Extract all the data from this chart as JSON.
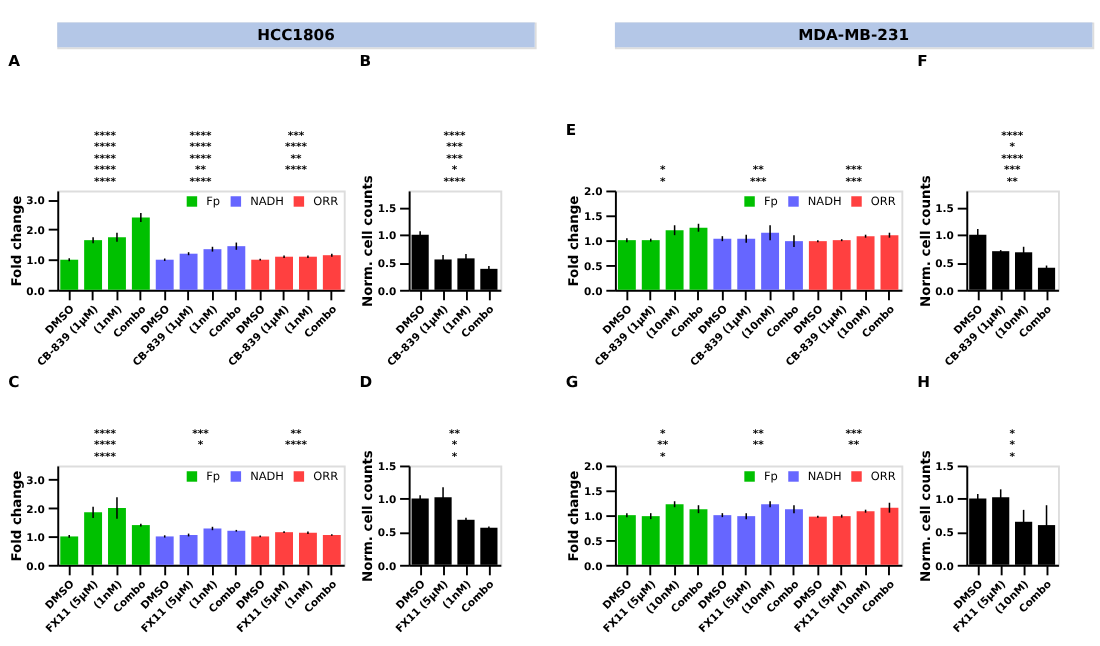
{
  "chart_data": [
    {
      "type": "other",
      "title": "HCC1806",
      "color": "#b4c7e7"
    },
    {
      "type": "bar",
      "title": "A",
      "ylabel": "Fold change",
      "categories": [
        "DMSO",
        "CB-839 (1μM)",
        "(1nM)",
        "Combo",
        "DMSO",
        "CB-839 (1μM)",
        "(1nM)",
        "Combo",
        "DMSO",
        "CB-839 (1μM)",
        "(1nM)",
        "Combo"
      ],
      "series": [
        {
          "name": "Fp",
          "color": "#00c000",
          "values": [
            1.0,
            1.65,
            1.75,
            2.4,
            null,
            null,
            null,
            null,
            null,
            null,
            null,
            null
          ],
          "errors": [
            0.05,
            0.1,
            0.15,
            0.15,
            null,
            null,
            null,
            null,
            null,
            null,
            null,
            null
          ]
        },
        {
          "name": "NADH",
          "color": "#6666ff",
          "values": [
            null,
            null,
            null,
            null,
            1.0,
            1.2,
            1.35,
            1.45,
            null,
            null,
            null,
            null
          ],
          "errors": [
            null,
            null,
            null,
            null,
            0.04,
            0.05,
            0.08,
            0.12,
            null,
            null,
            null,
            null
          ]
        },
        {
          "name": "ORR",
          "color": "#ff4040",
          "values": [
            null,
            null,
            null,
            null,
            null,
            null,
            null,
            null,
            1.0,
            1.1,
            1.1,
            1.15
          ],
          "errors": [
            null,
            null,
            null,
            null,
            null,
            null,
            null,
            null,
            0.03,
            0.04,
            0.04,
            0.05
          ]
        }
      ],
      "ylim": [
        0,
        3.3
      ],
      "yticks": [
        {
          "value": 0,
          "label": "0.0"
        },
        {
          "value": 1,
          "label": "1.0"
        },
        {
          "value": 2,
          "label": "2.0"
        },
        {
          "value": 3,
          "label": "3.0"
        }
      ],
      "legend": "top right",
      "grid": false,
      "annotations": [
        "****",
        "****",
        "***",
        "****",
        "****",
        "****",
        "****",
        "****",
        "**",
        "****",
        "**",
        "****",
        "****",
        "****"
      ]
    },
    {
      "type": "bar",
      "title": "B",
      "ylabel": "Norm. cell counts",
      "categories": [
        "DMSO",
        "CB-839 (1μM)",
        "(1nM)",
        "Combo"
      ],
      "series": [
        {
          "color": "#000000",
          "values": [
            1.0,
            0.55,
            0.57,
            0.38
          ],
          "errors": [
            0.06,
            0.08,
            0.08,
            0.05
          ]
        }
      ],
      "ylim": [
        0,
        1.8
      ],
      "yticks": [
        {
          "value": 0,
          "label": "0.0"
        },
        {
          "value": 0.5,
          "label": "0.5"
        },
        {
          "value": 1,
          "label": "1.0"
        },
        {
          "value": 1.5,
          "label": "1.5"
        }
      ],
      "grid": false,
      "annotations": [
        "****",
        "***",
        "***",
        "*",
        "****"
      ]
    },
    {
      "type": "bar",
      "title": "C",
      "ylabel": "Fold change",
      "categories": [
        "DMSO",
        "FX11 (5μM)",
        "(1nM)",
        "Combo",
        "DMSO",
        "FX11 (5μM)",
        "(1nM)",
        "Combo",
        "DMSO",
        "FX11 (5μM)",
        "(1nM)",
        "Combo"
      ],
      "series": [
        {
          "name": "Fp",
          "color": "#00c000",
          "values": [
            1.0,
            1.85,
            2.0,
            1.4,
            null,
            null,
            null,
            null,
            null,
            null,
            null,
            null
          ],
          "errors": [
            0.05,
            0.2,
            0.38,
            0.05,
            null,
            null,
            null,
            null,
            null,
            null,
            null,
            null
          ]
        },
        {
          "name": "NADH",
          "color": "#6666ff",
          "values": [
            null,
            null,
            null,
            null,
            1.0,
            1.05,
            1.28,
            1.2,
            null,
            null,
            null,
            null
          ],
          "errors": [
            null,
            null,
            null,
            null,
            0.04,
            0.05,
            0.06,
            0.03,
            null,
            null,
            null,
            null
          ]
        },
        {
          "name": "ORR",
          "color": "#ff4040",
          "values": [
            null,
            null,
            null,
            null,
            null,
            null,
            null,
            null,
            1.0,
            1.15,
            1.13,
            1.05
          ],
          "errors": [
            null,
            null,
            null,
            null,
            null,
            null,
            null,
            null,
            0.03,
            0.03,
            0.04,
            0.03
          ]
        }
      ],
      "ylim": [
        0,
        3.5
      ],
      "yticks": [
        {
          "value": 0,
          "label": "0.0"
        },
        {
          "value": 1,
          "label": "1.0"
        },
        {
          "value": 2,
          "label": "2.0"
        },
        {
          "value": 3,
          "label": "3.0"
        }
      ],
      "legend": "top right",
      "grid": false,
      "annotations": [
        "****",
        "***",
        "**",
        "****",
        "*",
        "****",
        "****"
      ]
    },
    {
      "type": "bar",
      "title": "D",
      "ylabel": "Norm. cell counts",
      "categories": [
        "DMSO",
        "FX11 (5μM)",
        "(1nM)",
        "Combo"
      ],
      "series": [
        {
          "color": "#000000",
          "values": [
            1.0,
            1.02,
            0.68,
            0.56
          ],
          "errors": [
            0.05,
            0.15,
            0.03,
            0.02
          ]
        }
      ],
      "ylim": [
        0,
        1.5
      ],
      "yticks": [
        {
          "value": 0,
          "label": "0.0"
        },
        {
          "value": 0.5,
          "label": "0.5"
        },
        {
          "value": 1,
          "label": "1.0"
        },
        {
          "value": 1.5,
          "label": "1.5"
        }
      ],
      "grid": false,
      "annotations": [
        "**",
        "*",
        "*"
      ]
    },
    {
      "type": "other",
      "title": "MDA-MB-231",
      "color": "#b4c7e7"
    },
    {
      "type": "bar",
      "title": "E",
      "ylabel": "Fold change",
      "categories": [
        "DMSO",
        "CB-839 (1μM)",
        "(10nM)",
        "Combo",
        "DMSO",
        "CB-839 (1μM)",
        "(10nM)",
        "Combo",
        "DMSO",
        "CB-839 (1μM)",
        "(10nM)",
        "Combo"
      ],
      "series": [
        {
          "name": "Fp",
          "color": "#00c000",
          "values": [
            1.0,
            1.0,
            1.2,
            1.25,
            null,
            null,
            null,
            null,
            null,
            null,
            null,
            null
          ],
          "errors": [
            0.04,
            0.03,
            0.1,
            0.08,
            null,
            null,
            null,
            null,
            null,
            null,
            null,
            null
          ]
        },
        {
          "name": "NADH",
          "color": "#6666ff",
          "values": [
            null,
            null,
            null,
            null,
            1.03,
            1.03,
            1.15,
            0.98,
            null,
            null,
            null,
            null
          ],
          "errors": [
            null,
            null,
            null,
            null,
            0.05,
            0.08,
            0.15,
            0.12,
            null,
            null,
            null,
            null
          ]
        },
        {
          "name": "ORR",
          "color": "#ff4040",
          "values": [
            null,
            null,
            null,
            null,
            null,
            null,
            null,
            null,
            0.98,
            1.0,
            1.08,
            1.1
          ],
          "errors": [
            null,
            null,
            null,
            null,
            null,
            null,
            null,
            null,
            0.02,
            0.02,
            0.03,
            0.05
          ]
        }
      ],
      "ylim": [
        0,
        2.0
      ],
      "yticks": [
        {
          "value": 0,
          "label": "0.0"
        },
        {
          "value": 0.5,
          "label": "0.5"
        },
        {
          "value": 1,
          "label": "1.0"
        },
        {
          "value": 1.5,
          "label": "1.5"
        },
        {
          "value": 2,
          "label": "2.0"
        }
      ],
      "legend": "top right",
      "grid": false,
      "annotations": [
        "*",
        "**",
        "***",
        "*",
        "***",
        "***"
      ]
    },
    {
      "type": "bar",
      "title": "F",
      "ylabel": "Norm. cell counts",
      "categories": [
        "DMSO",
        "CB-839 (1μM)",
        "(10nM)",
        "Combo"
      ],
      "series": [
        {
          "color": "#000000",
          "values": [
            1.0,
            0.7,
            0.68,
            0.4
          ],
          "errors": [
            0.1,
            0.02,
            0.1,
            0.04
          ]
        }
      ],
      "ylim": [
        0,
        1.8
      ],
      "yticks": [
        {
          "value": 0,
          "label": "0.0"
        },
        {
          "value": 0.5,
          "label": "0.5"
        },
        {
          "value": 1,
          "label": "1.0"
        },
        {
          "value": 1.5,
          "label": "1.5"
        }
      ],
      "grid": false,
      "annotations": [
        "****",
        "*",
        "****",
        "***",
        "**"
      ]
    },
    {
      "type": "bar",
      "title": "G",
      "ylabel": "Fold change",
      "categories": [
        "DMSO",
        "FX11 (5μM)",
        "(10nM)",
        "Combo",
        "DMSO",
        "FX11 (5μM)",
        "(10nM)",
        "Combo",
        "DMSO",
        "FX11 (5μM)",
        "(10nM)",
        "Combo"
      ],
      "series": [
        {
          "name": "Fp",
          "color": "#00c000",
          "values": [
            1.0,
            0.98,
            1.22,
            1.12,
            null,
            null,
            null,
            null,
            null,
            null,
            null,
            null
          ],
          "errors": [
            0.04,
            0.06,
            0.06,
            0.08,
            null,
            null,
            null,
            null,
            null,
            null,
            null,
            null
          ]
        },
        {
          "name": "NADH",
          "color": "#6666ff",
          "values": [
            null,
            null,
            null,
            null,
            1.0,
            0.98,
            1.22,
            1.12,
            null,
            null,
            null,
            null
          ],
          "errors": [
            null,
            null,
            null,
            null,
            0.04,
            0.06,
            0.06,
            0.08,
            null,
            null,
            null,
            null
          ]
        },
        {
          "name": "ORR",
          "color": "#ff4040",
          "values": [
            null,
            null,
            null,
            null,
            null,
            null,
            null,
            null,
            0.97,
            0.98,
            1.08,
            1.15
          ],
          "errors": [
            null,
            null,
            null,
            null,
            null,
            null,
            null,
            null,
            0.02,
            0.03,
            0.03,
            0.1
          ]
        }
      ],
      "ylim": [
        0,
        2.0
      ],
      "yticks": [
        {
          "value": 0,
          "label": "0.0"
        },
        {
          "value": 0.5,
          "label": "0.5"
        },
        {
          "value": 1,
          "label": "1.0"
        },
        {
          "value": 1.5,
          "label": "1.5"
        },
        {
          "value": 2,
          "label": "2.0"
        }
      ],
      "legend": "top right",
      "grid": false,
      "annotations": [
        "*",
        "**",
        "***",
        "**",
        "**",
        "**",
        "*"
      ]
    },
    {
      "type": "bar",
      "title": "H",
      "ylabel": "Norm. cell counts",
      "categories": [
        "DMSO",
        "FX11 (5μM)",
        "(10nM)",
        "Combo"
      ],
      "series": [
        {
          "color": "#000000",
          "values": [
            1.0,
            1.02,
            0.65,
            0.6
          ],
          "errors": [
            0.07,
            0.12,
            0.18,
            0.3
          ]
        }
      ],
      "ylim": [
        0,
        1.5
      ],
      "yticks": [
        {
          "value": 0,
          "label": "0.0"
        },
        {
          "value": 0.5,
          "label": "0.5"
        },
        {
          "value": 1,
          "label": "1.0"
        },
        {
          "value": 1.5,
          "label": "1.5"
        }
      ],
      "grid": false,
      "annotations": [
        "*",
        "*",
        "*"
      ]
    }
  ]
}
